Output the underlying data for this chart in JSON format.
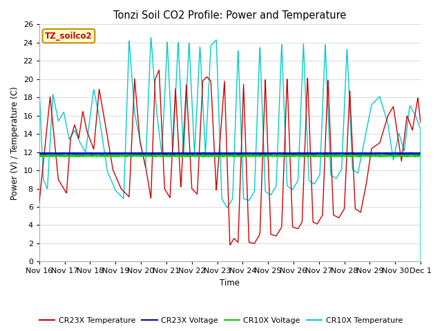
{
  "title": "Tonzi Soil CO2 Profile: Power and Temperature",
  "ylabel": "Power (V) / Temperature (C)",
  "xlabel": "Time",
  "ylim": [
    0,
    26
  ],
  "xlim": [
    0,
    14
  ],
  "fig_bg_color": "#ffffff",
  "plot_bg_color": "#ffffff",
  "grid_color": "#dddddd",
  "legend_label": "TZ_soilco2",
  "tick_labels": [
    "Nov 16",
    "Nov 17",
    "Nov 18",
    "Nov 19",
    "Nov 20",
    "Nov 21",
    "Nov 22",
    "Nov 23",
    "Nov 24",
    "Nov 25",
    "Nov 26",
    "Nov 27",
    "Nov 28",
    "Nov 29",
    "Nov 30",
    "Dec 1"
  ],
  "cr23x_voltage_color": "#0000cc",
  "cr10x_voltage_color": "#00cc00",
  "cr23x_temp_color": "#cc0000",
  "cr10x_temp_color": "#00cccc",
  "cr23x_voltage_value": 11.85,
  "cr10x_voltage_value": 11.6,
  "series_labels": [
    "CR23X Temperature",
    "CR23X Voltage",
    "CR10X Voltage",
    "CR10X Temperature"
  ],
  "legend_box_facecolor": "#ffffcc",
  "legend_box_edgecolor": "#cc8800",
  "legend_text_color": "#cc0000"
}
